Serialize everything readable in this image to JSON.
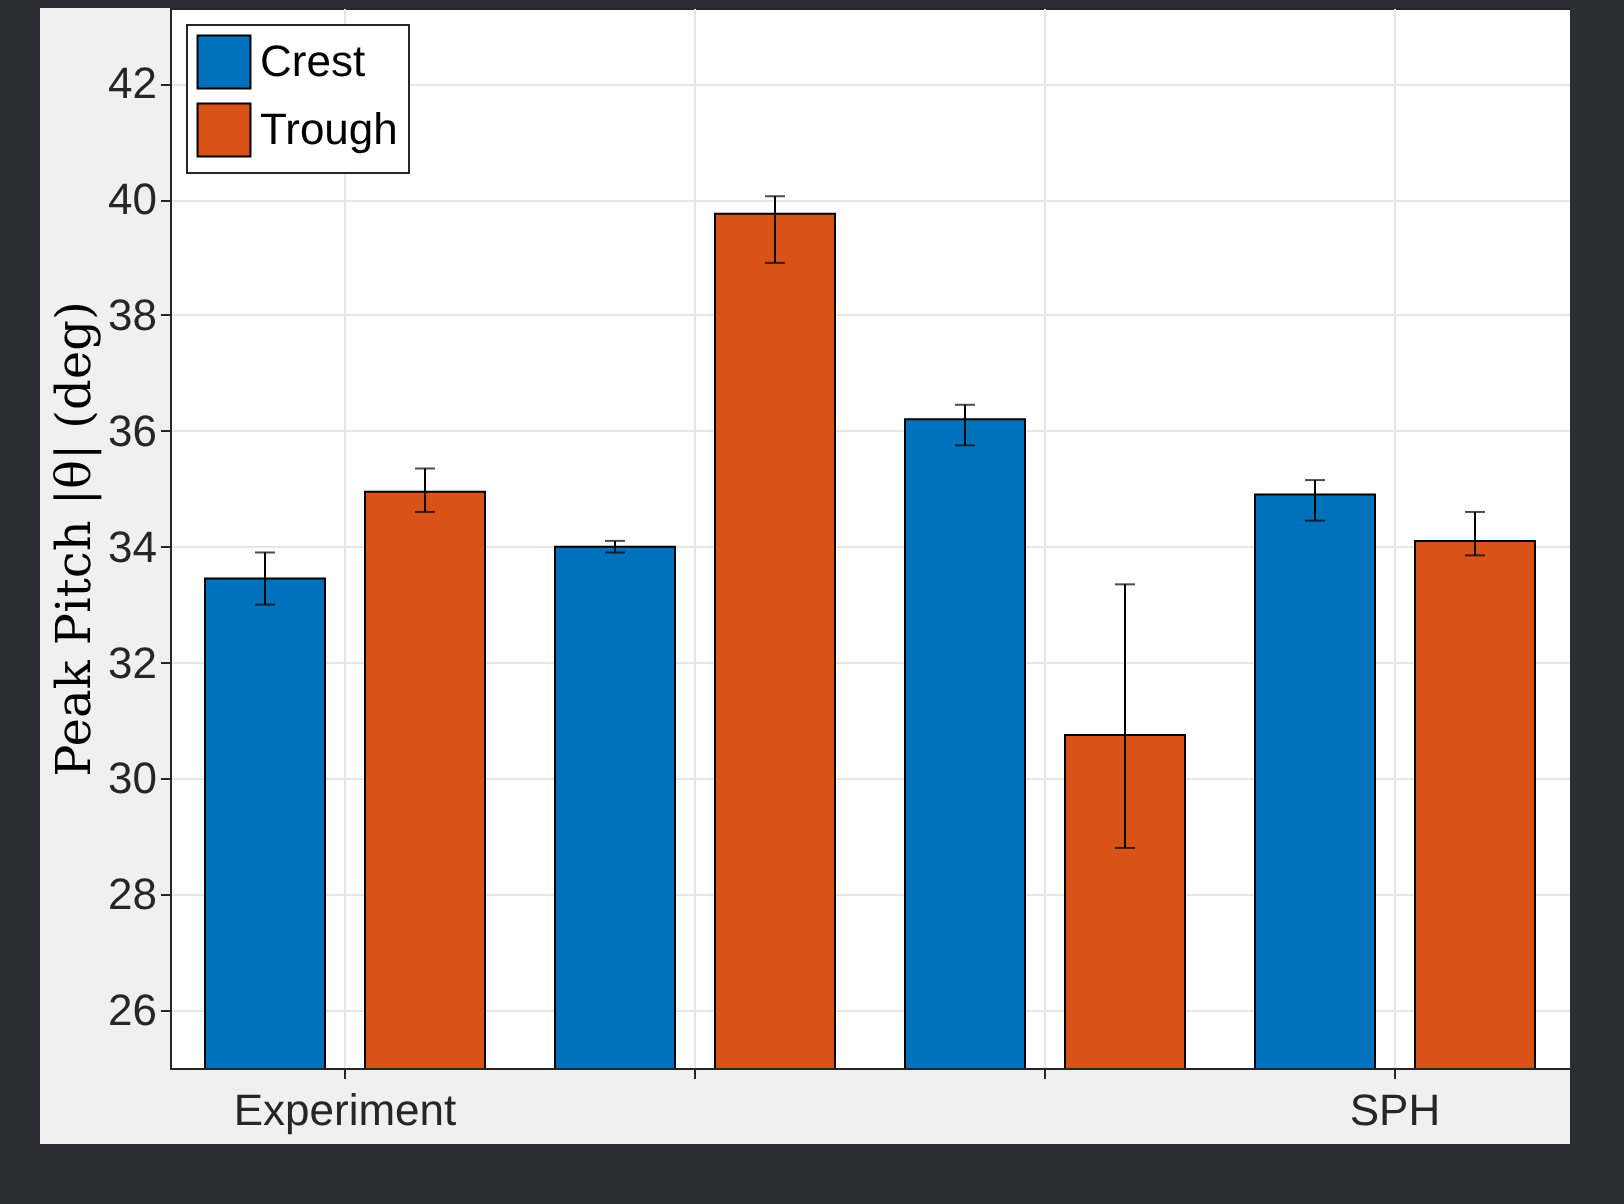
{
  "chart_data": {
    "type": "bar",
    "ylabel": "Peak Pitch |θ| (deg)",
    "categories": [
      "Experiment",
      null,
      null,
      "SPH"
    ],
    "series": [
      {
        "name": "Crest",
        "color": "#0072bd",
        "values": [
          33.45,
          34.0,
          36.2,
          34.9
        ],
        "errors": [
          [
            33.0,
            33.9
          ],
          [
            33.9,
            34.1
          ],
          [
            35.75,
            36.45
          ],
          [
            34.45,
            35.15
          ]
        ]
      },
      {
        "name": "Trough",
        "color": "#d95319",
        "values": [
          34.95,
          39.75,
          30.75,
          34.1
        ],
        "errors": [
          [
            34.6,
            35.35
          ],
          [
            38.9,
            40.05
          ],
          [
            28.8,
            33.35
          ],
          [
            33.85,
            34.6
          ]
        ]
      }
    ],
    "ylim": [
      25,
      43.3
    ],
    "yticks": [
      26,
      28,
      30,
      32,
      34,
      36,
      38,
      40,
      42
    ],
    "grid": true,
    "legend": "top left"
  }
}
